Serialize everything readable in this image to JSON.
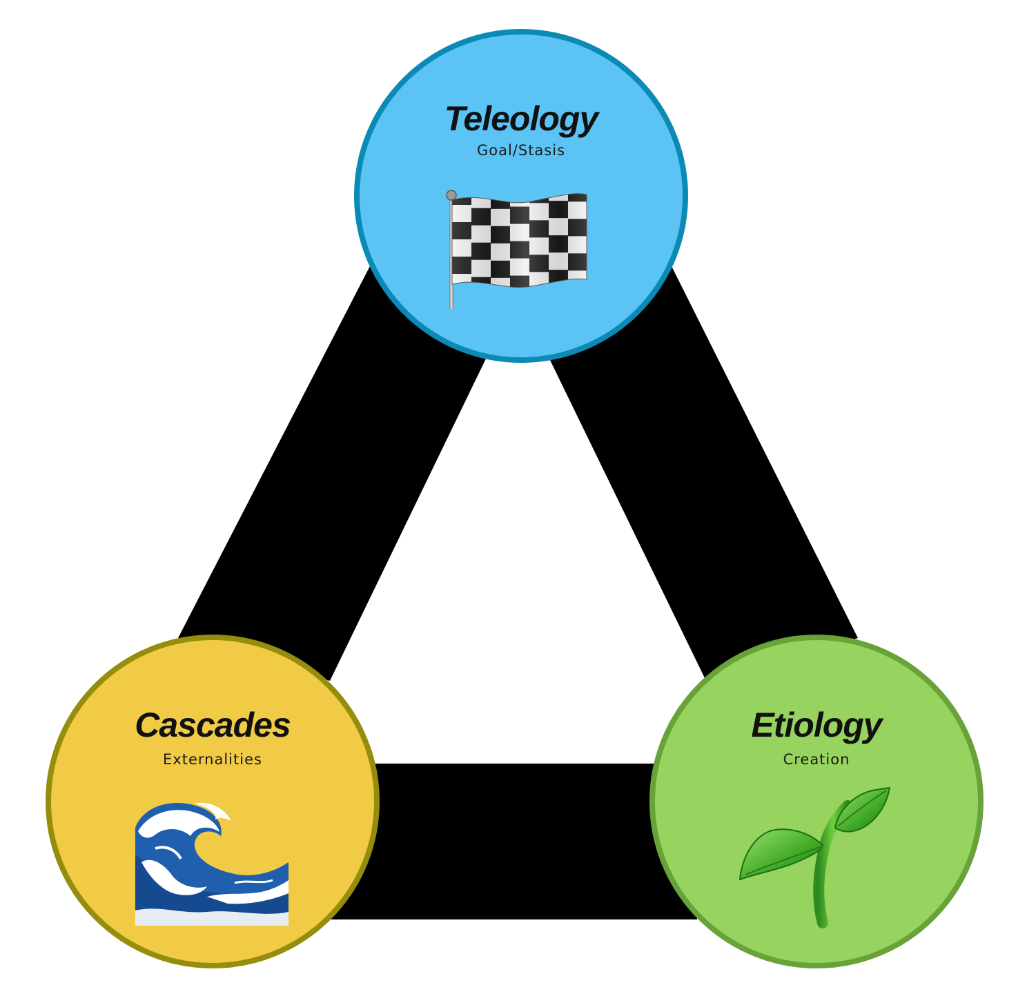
{
  "colors": {
    "background": "#ffffff",
    "edges": "#000000",
    "teleology_fill": "#5bc4f5",
    "teleology_border": "#0b8ab5",
    "cascades_fill": "#f2cb46",
    "cascades_border": "#958d0c",
    "etiology_fill": "#97d35f",
    "etiology_border": "#68a33a"
  },
  "nodes": {
    "teleology": {
      "title": "Teleology",
      "subtitle": "Goal/Stasis",
      "icon": "checkered-flag-icon"
    },
    "cascades": {
      "title": "Cascades",
      "subtitle": "Externalities",
      "icon": "water-wave-icon"
    },
    "etiology": {
      "title": "Etiology",
      "subtitle": "Creation",
      "icon": "seedling-icon"
    }
  }
}
